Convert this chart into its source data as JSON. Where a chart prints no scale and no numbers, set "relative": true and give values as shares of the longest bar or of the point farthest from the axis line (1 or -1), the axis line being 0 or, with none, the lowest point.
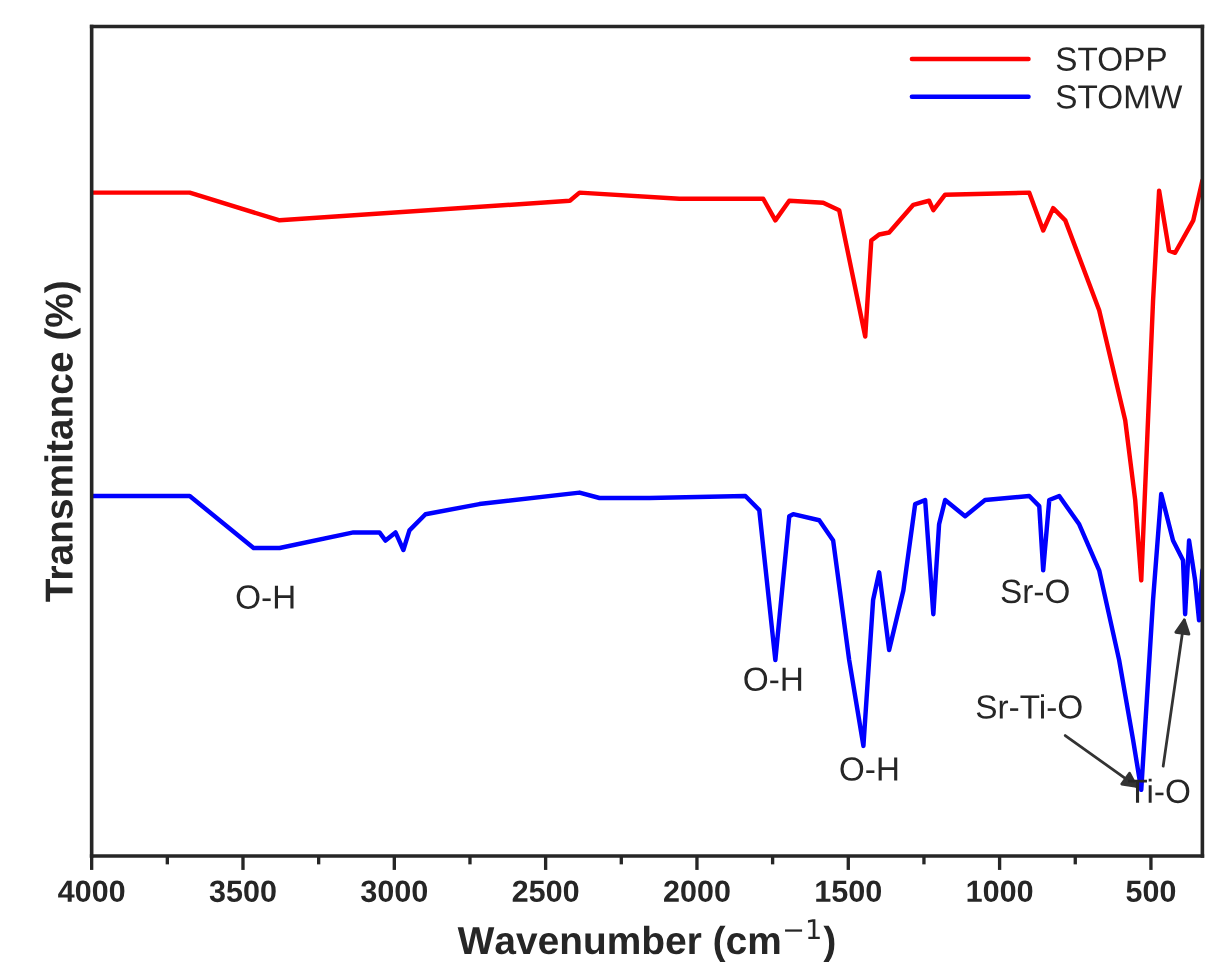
{
  "chart_data": {
    "type": "line",
    "relative": true,
    "xlabel": "Wavenumber (cm$^{−1}$)",
    "ylabel": "Transmitance (%)",
    "xlim": [
      4000,
      330
    ],
    "xticks": [
      4000,
      {
        "value": 3750,
        "label": null
      },
      3500,
      {
        "value": 3250,
        "label": null
      },
      3000,
      {
        "value": 2750,
        "label": null
      },
      2500,
      {
        "value": 2250,
        "label": null
      },
      2000,
      {
        "value": 1750,
        "label": null
      },
      1500,
      {
        "value": 1250,
        "label": null
      },
      1000,
      {
        "value": 750,
        "label": null
      },
      500
    ],
    "legend": "top right",
    "grid": false,
    "series": [
      {
        "name": "STOPP",
        "color": "#ff0000",
        "x": [
          4000,
          3676,
          3379,
          2420,
          2388,
          2058,
          1781,
          1741,
          1695,
          1583,
          1530,
          1444,
          1424,
          1398,
          1365,
          1285,
          1233,
          1219,
          1180,
          902,
          856,
          823,
          783,
          671,
          585,
          552,
          532,
          493,
          473,
          440,
          420,
          360,
          330
        ],
        "values": [
          0.982,
          0.982,
          0.941,
          0.97,
          0.982,
          0.973,
          0.973,
          0.941,
          0.97,
          0.967,
          0.956,
          0.769,
          0.911,
          0.92,
          0.923,
          0.964,
          0.97,
          0.956,
          0.979,
          0.982,
          0.926,
          0.959,
          0.941,
          0.808,
          0.645,
          0.527,
          0.408,
          0.822,
          0.985,
          0.896,
          0.893,
          0.941,
          1.0
        ]
      },
      {
        "name": "STOMW",
        "color": "#0000ff",
        "x": [
          4000,
          3676,
          3465,
          3379,
          3135,
          3049,
          3029,
          2996,
          2970,
          2950,
          2897,
          2719,
          2388,
          2322,
          2157,
          1840,
          1794,
          1741,
          1695,
          1682,
          1596,
          1550,
          1497,
          1450,
          1418,
          1398,
          1365,
          1318,
          1279,
          1246,
          1219,
          1200,
          1180,
          1114,
          1048,
          902,
          869,
          856,
          836,
          803,
          737,
          671,
          605,
          559,
          532,
          493,
          466,
          427,
          394,
          387,
          374,
          354,
          341,
          330
        ],
        "values": [
          0.533,
          0.533,
          0.456,
          0.456,
          0.479,
          0.479,
          0.467,
          0.479,
          0.453,
          0.482,
          0.506,
          0.521,
          0.538,
          0.53,
          0.53,
          0.533,
          0.512,
          0.29,
          0.503,
          0.506,
          0.497,
          0.467,
          0.29,
          0.163,
          0.379,
          0.42,
          0.305,
          0.393,
          0.521,
          0.527,
          0.358,
          0.491,
          0.527,
          0.503,
          0.527,
          0.533,
          0.518,
          0.423,
          0.527,
          0.533,
          0.491,
          0.423,
          0.29,
          0.172,
          0.098,
          0.379,
          0.536,
          0.467,
          0.438,
          0.358,
          0.467,
          0.408,
          0.349,
          0.423
        ]
      }
    ],
    "annotations": [
      {
        "text": "O-H",
        "x": 3425,
        "y": 0.456
      },
      {
        "text": "O-H",
        "x": 1741,
        "y": 0.29
      },
      {
        "text": "O-H",
        "x": 1450,
        "y": 0.163
      },
      {
        "text": "Sr-O",
        "x": 856,
        "y": 0.423
      },
      {
        "text": "Sr-Ti-O",
        "x": 532,
        "y": 0.098
      },
      {
        "text": "Ti-O",
        "x": 387,
        "y": 0.358
      }
    ]
  }
}
